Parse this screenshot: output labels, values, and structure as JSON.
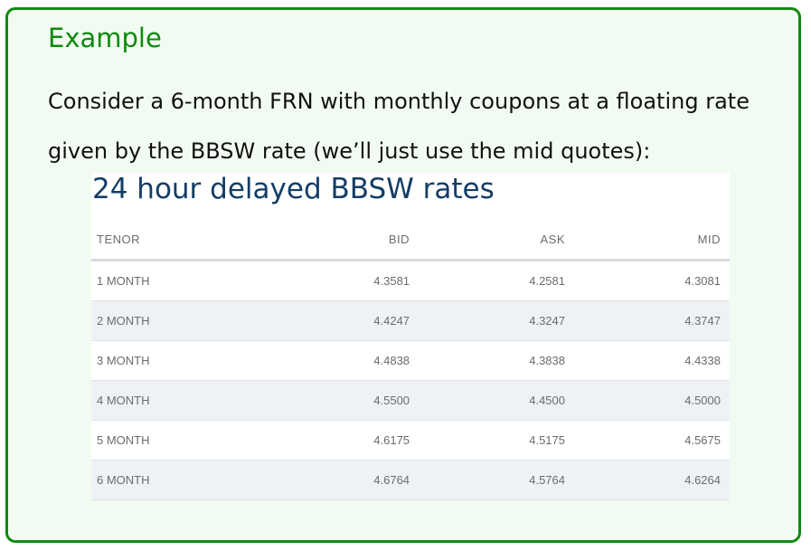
{
  "example": {
    "title": "Example",
    "text": "Consider a 6-month FRN with monthly coupons at a floating rate given by the BBSW rate (we’ll just use the mid quotes):"
  },
  "rates": {
    "heading": "24 hour delayed BBSW rates",
    "columns": {
      "tenor": "TENOR",
      "bid": "BID",
      "ask": "ASK",
      "mid": "MID"
    },
    "rows": [
      {
        "tenor": "1 MONTH",
        "bid": "4.3581",
        "ask": "4.2581",
        "mid": "4.3081"
      },
      {
        "tenor": "2 MONTH",
        "bid": "4.4247",
        "ask": "4.3247",
        "mid": "4.3747"
      },
      {
        "tenor": "3 MONTH",
        "bid": "4.4838",
        "ask": "4.3838",
        "mid": "4.4338"
      },
      {
        "tenor": "4 MONTH",
        "bid": "4.5500",
        "ask": "4.4500",
        "mid": "4.5000"
      },
      {
        "tenor": "5 MONTH",
        "bid": "4.6175",
        "ask": "4.5175",
        "mid": "4.5675"
      },
      {
        "tenor": "6 MONTH",
        "bid": "4.6764",
        "ask": "4.5764",
        "mid": "4.6264"
      }
    ]
  }
}
